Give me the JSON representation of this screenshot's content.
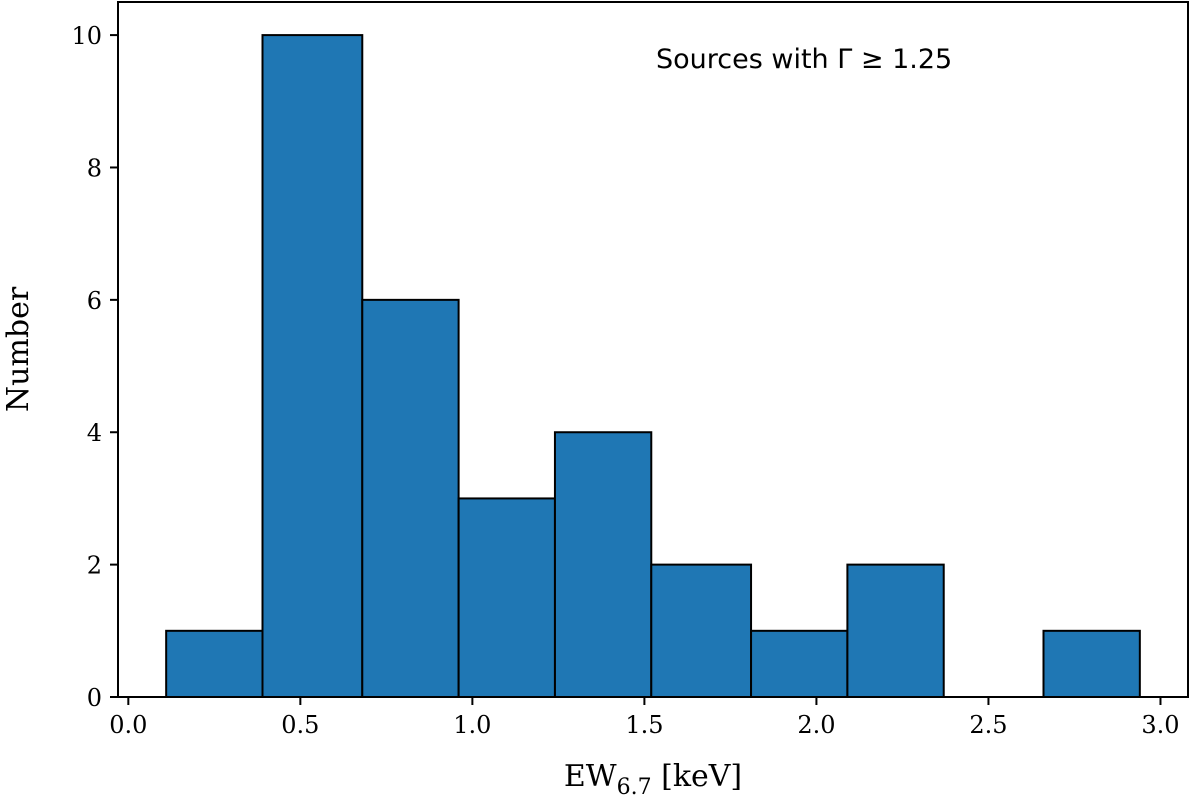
{
  "chart_data": {
    "type": "bar",
    "histogram": true,
    "bins": [
      {
        "x0": 0.11,
        "x1": 0.39,
        "count": 1
      },
      {
        "x0": 0.39,
        "x1": 0.68,
        "count": 10
      },
      {
        "x0": 0.68,
        "x1": 0.96,
        "count": 6
      },
      {
        "x0": 0.96,
        "x1": 1.24,
        "count": 3
      },
      {
        "x0": 1.24,
        "x1": 1.52,
        "count": 4
      },
      {
        "x0": 1.52,
        "x1": 1.81,
        "count": 2
      },
      {
        "x0": 1.81,
        "x1": 2.09,
        "count": 1
      },
      {
        "x0": 2.09,
        "x1": 2.37,
        "count": 2
      },
      {
        "x0": 2.37,
        "x1": 2.66,
        "count": 0
      },
      {
        "x0": 2.66,
        "x1": 2.94,
        "count": 1
      }
    ],
    "xlabel_main": "EW",
    "xlabel_sub": "6.7",
    "xlabel_unit": " [keV]",
    "ylabel": "Number",
    "xlim": [
      -0.03,
      3.08
    ],
    "ylim": [
      0,
      10.5
    ],
    "xticks": [
      "0.0",
      "0.5",
      "1.0",
      "1.5",
      "2.0",
      "2.5",
      "3.0"
    ],
    "xtick_values": [
      0.0,
      0.5,
      1.0,
      1.5,
      2.0,
      2.5,
      3.0
    ],
    "yticks": [
      "0",
      "2",
      "4",
      "6",
      "8",
      "10"
    ],
    "ytick_values": [
      0,
      2,
      4,
      6,
      8,
      10
    ],
    "annotation": "Sources with Γ ≥ 1.25",
    "bar_color": "#1f77b4",
    "edge_color": "#000000",
    "grid": false
  }
}
